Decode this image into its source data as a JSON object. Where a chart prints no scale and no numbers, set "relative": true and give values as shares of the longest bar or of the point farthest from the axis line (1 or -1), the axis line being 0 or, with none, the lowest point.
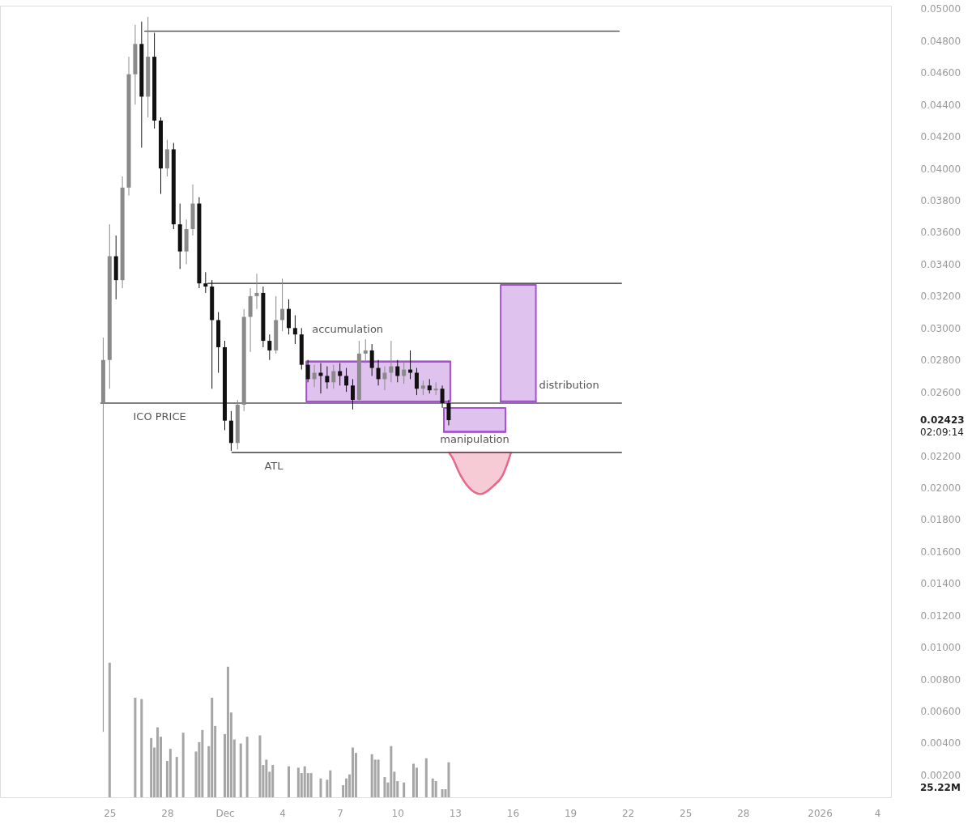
{
  "chart_data": [
    {
      "type": "candlestick",
      "x": [
        "2025-11-24T16:00",
        "2025-11-25T00:00",
        "2025-11-25T08:00",
        "2025-11-25T16:00",
        "2025-11-26T00:00",
        "2025-11-26T08:00",
        "2025-11-26T16:00",
        "2025-11-27T00:00",
        "2025-11-27T08:00",
        "2025-11-27T16:00",
        "2025-11-28T00:00",
        "2025-11-28T08:00",
        "2025-11-28T16:00",
        "2025-11-29T00:00",
        "2025-11-29T08:00",
        "2025-11-29T16:00",
        "2025-11-30T00:00",
        "2025-11-30T08:00",
        "2025-11-30T16:00",
        "2025-12-01T00:00",
        "2025-12-01T08:00",
        "2025-12-01T16:00",
        "2025-12-02T00:00",
        "2025-12-02T08:00",
        "2025-12-02T16:00",
        "2025-12-03T00:00",
        "2025-12-03T08:00",
        "2025-12-03T16:00",
        "2025-12-04T00:00",
        "2025-12-04T08:00",
        "2025-12-04T16:00",
        "2025-12-05T00:00",
        "2025-12-05T08:00",
        "2025-12-05T16:00",
        "2025-12-06T00:00",
        "2025-12-06T08:00",
        "2025-12-06T16:00",
        "2025-12-07T00:00",
        "2025-12-07T08:00",
        "2025-12-07T16:00",
        "2025-12-08T00:00",
        "2025-12-08T08:00",
        "2025-12-08T16:00",
        "2025-12-09T00:00",
        "2025-12-09T08:00",
        "2025-12-09T16:00",
        "2025-12-10T00:00",
        "2025-12-10T08:00",
        "2025-12-10T16:00",
        "2025-12-11T00:00",
        "2025-12-11T08:00",
        "2025-12-11T16:00",
        "2025-12-12T00:00",
        "2025-12-12T08:00",
        "2025-12-12T16:00"
      ],
      "ohlc": [
        [
          0.0253,
          0.0294,
          0.0047,
          0.028
        ],
        [
          0.028,
          0.0365,
          0.0262,
          0.0345
        ],
        [
          0.0345,
          0.0358,
          0.0318,
          0.033
        ],
        [
          0.033,
          0.0395,
          0.0325,
          0.0388
        ],
        [
          0.0388,
          0.047,
          0.0383,
          0.0459
        ],
        [
          0.0459,
          0.049,
          0.044,
          0.0478
        ],
        [
          0.0478,
          0.0492,
          0.0413,
          0.0445
        ],
        [
          0.0445,
          0.0495,
          0.0432,
          0.047
        ],
        [
          0.047,
          0.0485,
          0.0425,
          0.043
        ],
        [
          0.043,
          0.0432,
          0.0384,
          0.04
        ],
        [
          0.04,
          0.0418,
          0.0395,
          0.0412
        ],
        [
          0.0412,
          0.0416,
          0.0362,
          0.0365
        ],
        [
          0.0365,
          0.0378,
          0.0337,
          0.0348
        ],
        [
          0.0348,
          0.0368,
          0.034,
          0.0362
        ],
        [
          0.0362,
          0.039,
          0.0358,
          0.0378
        ],
        [
          0.0378,
          0.0382,
          0.0325,
          0.0328
        ],
        [
          0.0328,
          0.0335,
          0.0322,
          0.0326
        ],
        [
          0.0326,
          0.033,
          0.0262,
          0.0305
        ],
        [
          0.0305,
          0.031,
          0.0272,
          0.0288
        ],
        [
          0.0288,
          0.0292,
          0.0236,
          0.0242
        ],
        [
          0.0242,
          0.0248,
          0.0223,
          0.0228
        ],
        [
          0.0228,
          0.0255,
          0.0224,
          0.0252
        ],
        [
          0.0252,
          0.0312,
          0.0248,
          0.0307
        ],
        [
          0.0307,
          0.0325,
          0.0285,
          0.032
        ],
        [
          0.032,
          0.0334,
          0.0312,
          0.0322
        ],
        [
          0.0322,
          0.0326,
          0.0288,
          0.0292
        ],
        [
          0.0292,
          0.0296,
          0.028,
          0.0286
        ],
        [
          0.0286,
          0.032,
          0.0284,
          0.0305
        ],
        [
          0.0305,
          0.0331,
          0.0298,
          0.0312
        ],
        [
          0.0312,
          0.0318,
          0.0296,
          0.03
        ],
        [
          0.03,
          0.0308,
          0.029,
          0.0296
        ],
        [
          0.0296,
          0.03,
          0.0274,
          0.0277
        ],
        [
          0.0277,
          0.028,
          0.0266,
          0.0268
        ],
        [
          0.0268,
          0.0277,
          0.0263,
          0.0272
        ],
        [
          0.0272,
          0.0278,
          0.0259,
          0.027
        ],
        [
          0.027,
          0.0276,
          0.0262,
          0.0266
        ],
        [
          0.0266,
          0.0277,
          0.0262,
          0.0273
        ],
        [
          0.0273,
          0.0278,
          0.0264,
          0.027
        ],
        [
          0.027,
          0.0275,
          0.026,
          0.0264
        ],
        [
          0.0264,
          0.0268,
          0.0249,
          0.0255
        ],
        [
          0.0255,
          0.0292,
          0.0253,
          0.0284
        ],
        [
          0.0284,
          0.0293,
          0.0278,
          0.0286
        ],
        [
          0.0286,
          0.029,
          0.027,
          0.0275
        ],
        [
          0.0275,
          0.028,
          0.0264,
          0.0268
        ],
        [
          0.0268,
          0.0276,
          0.0261,
          0.0272
        ],
        [
          0.0272,
          0.0292,
          0.0266,
          0.0276
        ],
        [
          0.0276,
          0.028,
          0.0266,
          0.027
        ],
        [
          0.027,
          0.0279,
          0.0265,
          0.0274
        ],
        [
          0.0274,
          0.0286,
          0.0268,
          0.0272
        ],
        [
          0.0272,
          0.0275,
          0.0258,
          0.0262
        ],
        [
          0.0262,
          0.0267,
          0.0258,
          0.0264
        ],
        [
          0.0264,
          0.0268,
          0.0259,
          0.0261
        ],
        [
          0.0261,
          0.0266,
          0.0258,
          0.0262
        ],
        [
          0.0262,
          0.0264,
          0.025,
          0.0253
        ],
        [
          0.0253,
          0.0255,
          0.0239,
          0.02423
        ]
      ],
      "colors": [
        "#8a8a8a",
        "#8a8a8a",
        "#111111",
        "#8a8a8a",
        "#8a8a8a",
        "#8a8a8a",
        "#111111",
        "#8a8a8a",
        "#111111",
        "#111111",
        "#8a8a8a",
        "#111111",
        "#111111",
        "#8a8a8a",
        "#8a8a8a",
        "#111111",
        "#111111",
        "#111111",
        "#111111",
        "#111111",
        "#111111",
        "#8a8a8a",
        "#8a8a8a",
        "#8a8a8a",
        "#8a8a8a",
        "#111111",
        "#111111",
        "#8a8a8a",
        "#8a8a8a",
        "#111111",
        "#111111",
        "#111111",
        "#111111",
        "#8a8a8a",
        "#111111",
        "#111111",
        "#8a8a8a",
        "#111111",
        "#111111",
        "#111111",
        "#8a8a8a",
        "#8a8a8a",
        "#111111",
        "#111111",
        "#8a8a8a",
        "#8a8a8a",
        "#111111",
        "#8a8a8a",
        "#111111",
        "#111111",
        "#8a8a8a",
        "#111111",
        "#8a8a8a",
        "#111111",
        "#111111"
      ],
      "series": [
        {
          "type": "line",
          "x": [
            "2025-12-12T16:20",
            "2025-12-12T20:20",
            "2025-12-13T06:30",
            "2025-12-13T17:30",
            "2025-12-14T07:30",
            "2025-12-14T23:40",
            "2025-12-15T11:40",
            "2025-12-15T18:40",
            "2025-12-15T21:50"
          ],
          "values": [
            0.0222,
            0.0219,
            0.0208,
            0.02,
            0.0196,
            0.0201,
            0.0208,
            0.0217,
            0.0222
          ],
          "lower": [
            0.0222,
            0.0219,
            0.0208,
            0.02,
            0.0196,
            0.0201,
            0.0208,
            0.0217,
            0.0222
          ],
          "upper": [
            0.0222,
            0.0222,
            0.0222,
            0.0222,
            0.0222,
            0.0222,
            0.0222,
            0.0222,
            0.0222
          ],
          "color": "#e56b89"
        },
        {
          "type": "line",
          "x": [
            "2025-11-26T20:00",
            "2025-12-21T13:00"
          ],
          "values": [
            0.0486,
            0.0486
          ],
          "color": "#5a5a5a"
        },
        {
          "type": "line",
          "x": [
            "2025-11-30T03:00",
            "2025-12-21T16:00"
          ],
          "values": [
            0.0328,
            0.0328
          ],
          "color": "#5a5a5a"
        },
        {
          "type": "line",
          "name": "ICO PRICE",
          "x": [
            "2025-11-24T13:00",
            "2025-12-21T16:00"
          ],
          "values": [
            0.0253,
            0.0253
          ],
          "color": "#5a5a5a"
        },
        {
          "type": "line",
          "name": "ATL",
          "x": [
            "2025-12-01T09:00",
            "2025-12-21T16:00"
          ],
          "values": [
            0.0222,
            0.0222
          ],
          "color": "#5a5a5a"
        },
        {
          "type": "line",
          "name": "accumulation",
          "x": [
            "2025-12-05T06:00",
            "2025-12-12T18:00"
          ],
          "values": [
            0.0279,
            0.0279
          ],
          "lower": [
            0.0254,
            0.0254
          ],
          "upper": [
            0.0279,
            0.0279
          ],
          "color": "#a452cf"
        },
        {
          "type": "line",
          "name": "manipulation",
          "x": [
            "2025-12-12T10:00",
            "2025-12-15T15:00"
          ],
          "values": [
            0.0235,
            0.0235
          ],
          "lower": [
            0.0235,
            0.0235
          ],
          "upper": [
            0.025,
            0.025
          ],
          "color": "#a452cf"
        },
        {
          "type": "line",
          "name": "distribution",
          "x": [
            "2025-12-15T09:00",
            "2025-12-17T05:00"
          ],
          "values": [
            0.0254,
            0.0254
          ],
          "lower": [
            0.0254,
            0.0254
          ],
          "upper": [
            0.0327,
            0.0327
          ],
          "color": "#a452cf"
        }
      ],
      "annotations": [
        "0.02423",
        "02:09:14"
      ],
      "xlim": [
        "2025-11-19T12:00",
        "2026-01-04T12:00"
      ],
      "xticks": [
        {
          "value": "2025-11-25",
          "label": "25"
        },
        {
          "value": "2025-11-28",
          "label": "28"
        },
        {
          "value": "2025-12-01",
          "label": "Dec"
        },
        {
          "value": "2025-12-04",
          "label": "4"
        },
        {
          "value": "2025-12-07",
          "label": "7"
        },
        {
          "value": "2025-12-10",
          "label": "10"
        },
        {
          "value": "2025-12-13",
          "label": "13"
        },
        {
          "value": "2025-12-16",
          "label": "16"
        },
        {
          "value": "2025-12-19",
          "label": "19"
        },
        {
          "value": "2025-12-22",
          "label": "22"
        },
        {
          "value": "2025-12-25",
          "label": "25"
        },
        {
          "value": "2025-12-28",
          "label": "28"
        },
        {
          "value": "2026-01-01",
          "label": "2026"
        },
        {
          "value": "2026-01-04",
          "label": "4"
        }
      ],
      "ylim": [
        0.0006,
        0.0502
      ],
      "yticks": [
        {
          "value": 0.05,
          "label": "0.05000"
        },
        {
          "value": 0.048,
          "label": "0.04800"
        },
        {
          "value": 0.046,
          "label": "0.04600"
        },
        {
          "value": 0.044,
          "label": "0.04400"
        },
        {
          "value": 0.042,
          "label": "0.04200"
        },
        {
          "value": 0.04,
          "label": "0.04000"
        },
        {
          "value": 0.038,
          "label": "0.03800"
        },
        {
          "value": 0.036,
          "label": "0.03600"
        },
        {
          "value": 0.034,
          "label": "0.03400"
        },
        {
          "value": 0.032,
          "label": "0.03200"
        },
        {
          "value": 0.03,
          "label": "0.03000"
        },
        {
          "value": 0.028,
          "label": "0.02800"
        },
        {
          "value": 0.026,
          "label": "0.02600"
        },
        {
          "value": 0.022,
          "label": "0.02200"
        },
        {
          "value": 0.02,
          "label": "0.02000"
        },
        {
          "value": 0.018,
          "label": "0.01800"
        },
        {
          "value": 0.016,
          "label": "0.01600"
        },
        {
          "value": 0.014,
          "label": "0.01400"
        },
        {
          "value": 0.012,
          "label": "0.01200"
        },
        {
          "value": 0.01,
          "label": "0.01000"
        },
        {
          "value": 0.008,
          "label": "0.00800"
        },
        {
          "value": 0.006,
          "label": "0.00600"
        },
        {
          "value": 0.004,
          "label": "0.00400"
        },
        {
          "value": 0.002,
          "label": "0.00200"
        }
      ]
    },
    {
      "type": "bar",
      "relative": true,
      "color": "#a6a6a6",
      "x": [
        "2025-11-25T00:00",
        "2025-11-26T08:00",
        "2025-11-26T16:00",
        "2025-11-27T04:00",
        "2025-11-27T08:00",
        "2025-11-27T12:00",
        "2025-11-27T16:00",
        "2025-11-28T00:00",
        "2025-11-28T04:00",
        "2025-11-28T12:00",
        "2025-11-28T20:00",
        "2025-11-29T12:00",
        "2025-11-29T16:00",
        "2025-11-29T20:00",
        "2025-11-30T04:00",
        "2025-11-30T08:00",
        "2025-11-30T12:00",
        "2025-12-01T00:00",
        "2025-12-01T04:00",
        "2025-12-01T08:00",
        "2025-12-01T12:00",
        "2025-12-01T20:00",
        "2025-12-02T04:00",
        "2025-12-02T20:00",
        "2025-12-03T00:00",
        "2025-12-03T04:00",
        "2025-12-03T08:00",
        "2025-12-03T12:00",
        "2025-12-04T08:00",
        "2025-12-04T20:00",
        "2025-12-05T00:00",
        "2025-12-05T04:00",
        "2025-12-05T08:00",
        "2025-12-05T12:00",
        "2025-12-06T00:00",
        "2025-12-06T08:00",
        "2025-12-06T12:00",
        "2025-12-07T04:00",
        "2025-12-07T08:00",
        "2025-12-07T12:00",
        "2025-12-07T16:00",
        "2025-12-07T20:00",
        "2025-12-08T16:00",
        "2025-12-08T20:00",
        "2025-12-09T00:00",
        "2025-12-09T08:00",
        "2025-12-09T12:00",
        "2025-12-09T16:00",
        "2025-12-09T20:00",
        "2025-12-10T00:00",
        "2025-12-10T08:00",
        "2025-12-10T20:00",
        "2025-12-11T00:00",
        "2025-12-11T12:00",
        "2025-12-11T20:00",
        "2025-12-12T00:00",
        "2025-12-12T08:00",
        "2025-12-12T12:00",
        "2025-12-12T16:00"
      ],
      "values": [
        1,
        0.74,
        0.73,
        0.44,
        0.37,
        0.52,
        0.45,
        0.27,
        0.36,
        0.3,
        0.48,
        0.34,
        0.41,
        0.5,
        0.38,
        0.74,
        0.53,
        0.47,
        0.97,
        0.63,
        0.43,
        0.4,
        0.45,
        0.46,
        0.24,
        0.28,
        0.19,
        0.24,
        0.23,
        0.22,
        0.18,
        0.23,
        0.18,
        0.18,
        0.14,
        0.13,
        0.2,
        0.09,
        0.14,
        0.17,
        0.37,
        0.33,
        0.32,
        0.28,
        0.28,
        0.15,
        0.11,
        0.38,
        0.19,
        0.12,
        0.11,
        0.25,
        0.22,
        0.29,
        0.14,
        0.12,
        0.06,
        0.06,
        0.26
      ],
      "xlim": [
        "2025-11-19T12:00",
        "2026-01-04T12:00"
      ],
      "tick_labels": false,
      "annotations": [
        "25.22M"
      ]
    }
  ]
}
